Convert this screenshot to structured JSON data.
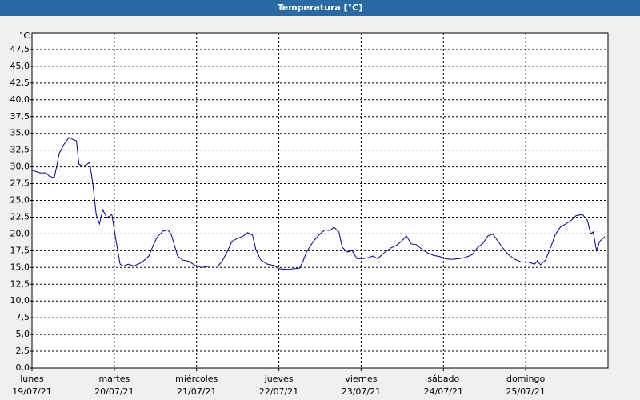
{
  "window_title": "Temperatura [°C]",
  "chart_data": {
    "type": "line",
    "y_unit": "°C",
    "xlim": [
      0,
      7
    ],
    "xticks": [
      {
        "value": 0,
        "label": "lunes",
        "date": "19/07/21"
      },
      {
        "value": 1,
        "label": "martes",
        "date": "20/07/21"
      },
      {
        "value": 2,
        "label": "miércoles",
        "date": "21/07/21"
      },
      {
        "value": 3,
        "label": "jueves",
        "date": "22/07/21"
      },
      {
        "value": 4,
        "label": "viernes",
        "date": "23/07/21"
      },
      {
        "value": 5,
        "label": "sábado",
        "date": "24/07/21"
      },
      {
        "value": 6,
        "label": "domingo",
        "date": "25/07/21"
      }
    ],
    "ylim": [
      0,
      50
    ],
    "yticks": [
      {
        "value": 0,
        "label": "0,0"
      },
      {
        "value": 2.5,
        "label": "2,5"
      },
      {
        "value": 5,
        "label": "5,0"
      },
      {
        "value": 7.5,
        "label": "7,5"
      },
      {
        "value": 10,
        "label": "10,0"
      },
      {
        "value": 12.5,
        "label": "12,5"
      },
      {
        "value": 15,
        "label": "15,0"
      },
      {
        "value": 17.5,
        "label": "17,5"
      },
      {
        "value": 20,
        "label": "20,0"
      },
      {
        "value": 22.5,
        "label": "22,5"
      },
      {
        "value": 25,
        "label": "25,0"
      },
      {
        "value": 27.5,
        "label": "27,5"
      },
      {
        "value": 30,
        "label": "30,0"
      },
      {
        "value": 32.5,
        "label": "32,5"
      },
      {
        "value": 35,
        "label": "35,0"
      },
      {
        "value": 37.5,
        "label": "37,5"
      },
      {
        "value": 40,
        "label": "40,0"
      },
      {
        "value": 42.5,
        "label": "42,5"
      },
      {
        "value": 45,
        "label": "45,0"
      },
      {
        "value": 47.5,
        "label": "47,5"
      }
    ],
    "grid": true,
    "series": [
      {
        "color": "#00008b",
        "x": [
          0,
          0.1,
          0.17,
          0.21,
          0.27,
          0.29,
          0.33,
          0.39,
          0.45,
          0.51,
          0.54,
          0.57,
          0.62,
          0.66,
          0.7,
          0.74,
          0.78,
          0.82,
          0.86,
          0.91,
          0.97,
          1.02,
          1.07,
          1.11,
          1.17,
          1.24,
          1.34,
          1.42,
          1.48,
          1.52,
          1.59,
          1.65,
          1.69,
          1.77,
          1.83,
          1.91,
          1.98,
          2.06,
          2.16,
          2.26,
          2.31,
          2.37,
          2.43,
          2.49,
          2.57,
          2.62,
          2.68,
          2.72,
          2.78,
          2.86,
          2.94,
          3.01,
          3.11,
          3.17,
          3.25,
          3.29,
          3.34,
          3.42,
          3.5,
          3.56,
          3.62,
          3.67,
          3.73,
          3.77,
          3.83,
          3.89,
          3.95,
          4.02,
          4.1,
          4.14,
          4.2,
          4.28,
          4.36,
          4.43,
          4.49,
          4.55,
          4.61,
          4.67,
          4.72,
          4.8,
          4.88,
          4.96,
          5.02,
          5.09,
          5.19,
          5.27,
          5.35,
          5.41,
          5.48,
          5.54,
          5.6,
          5.64,
          5.72,
          5.79,
          5.87,
          5.95,
          6.03,
          6.11,
          6.14,
          6.18,
          6.24,
          6.3,
          6.36,
          6.42,
          6.49,
          6.55,
          6.61,
          6.69,
          6.75,
          6.79,
          6.82,
          6.86,
          6.9,
          6.96
        ],
        "values": [
          29.5,
          29.1,
          29.1,
          28.6,
          28.4,
          29.5,
          32.0,
          33.4,
          34.4,
          34.0,
          33.9,
          30.4,
          30.1,
          30.3,
          30.7,
          27.4,
          22.9,
          21.5,
          23.6,
          22.4,
          22.9,
          19.1,
          15.5,
          15.2,
          15.5,
          15.2,
          15.8,
          16.7,
          18.5,
          19.5,
          20.4,
          20.6,
          20.0,
          16.7,
          16.1,
          15.9,
          15.3,
          15.0,
          15.2,
          15.2,
          15.9,
          17.3,
          18.9,
          19.3,
          19.7,
          20.2,
          19.8,
          17.7,
          16.1,
          15.5,
          15.3,
          14.8,
          14.7,
          14.8,
          14.9,
          15.8,
          17.4,
          18.9,
          20.0,
          20.6,
          20.5,
          21.0,
          20.3,
          18.0,
          17.3,
          17.5,
          16.3,
          16.3,
          16.5,
          16.7,
          16.3,
          17.2,
          17.9,
          18.3,
          18.9,
          19.7,
          18.5,
          18.4,
          17.9,
          17.2,
          16.8,
          16.6,
          16.3,
          16.2,
          16.3,
          16.5,
          16.9,
          17.9,
          18.6,
          19.7,
          20.0,
          19.3,
          17.9,
          16.9,
          16.2,
          15.8,
          15.8,
          15.5,
          16.0,
          15.4,
          16.1,
          17.9,
          19.9,
          21.0,
          21.5,
          22.0,
          22.7,
          22.9,
          22.0,
          20.0,
          20.3,
          17.5,
          18.9,
          19.6
        ]
      }
    ]
  }
}
